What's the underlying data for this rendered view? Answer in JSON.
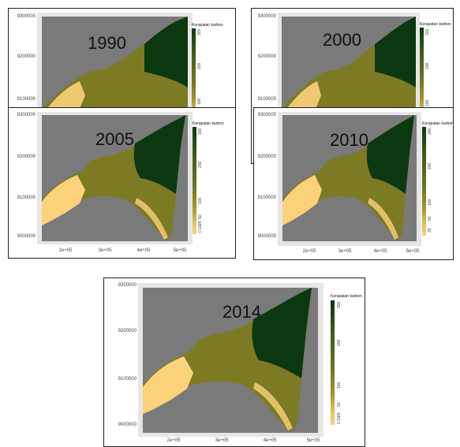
{
  "colors": {
    "sea": "#7a7a7a",
    "frame": "#e6e6e6",
    "low_carbon": "#fbd27a",
    "mid_carbon": "#7d7a24",
    "high_carbon": "#0b3810"
  },
  "y_ticks": [
    "9300000",
    "9200000",
    "9100000",
    "9000000"
  ],
  "x_ticks": [
    "2e+05",
    "3e+05",
    "4e+05",
    "5e+05"
  ],
  "legend_title": "Kerapatan karbon",
  "panels": [
    {
      "id": "p1990",
      "year": "1990",
      "legend_labels": [
        "320",
        "200",
        "100"
      ]
    },
    {
      "id": "p2000",
      "year": "2000",
      "legend_labels": [
        "320",
        "200",
        "100"
      ]
    },
    {
      "id": "p2005",
      "year": "2005",
      "legend_labels": [
        "300",
        "200",
        "100",
        "50",
        "25",
        "10",
        "0"
      ]
    },
    {
      "id": "p2010",
      "year": "2010",
      "legend_labels": [
        "300",
        "200",
        "100",
        "50",
        "25"
      ]
    },
    {
      "id": "p2014",
      "year": "2014",
      "legend_labels": [
        "300",
        "200",
        "100",
        "50",
        "25",
        "10",
        "0"
      ]
    }
  ]
}
